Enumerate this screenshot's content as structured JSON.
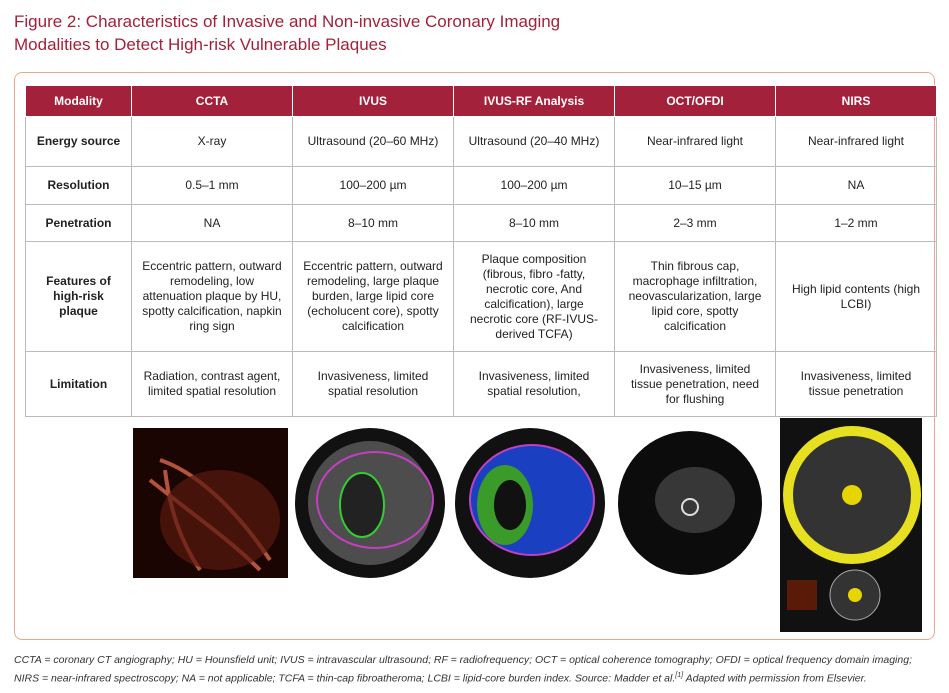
{
  "header": {
    "title": [
      "Figure 2: Characteristics of Invasive and Non-invasive Coronary Imaging",
      "Modalities to Detect High-risk Vulnerable Plaques"
    ]
  },
  "table": {
    "columns": [
      "Modality",
      "CCTA",
      "IVUS",
      "IVUS-RF Analysis",
      "OCT/OFDI",
      "NIRS"
    ],
    "rows": [
      [
        "Energy source",
        "X-ray",
        "Ultrasound (20–60 MHz)",
        "Ultrasound (20–40 MHz)",
        "Near-infrared light",
        "Near-infrared light"
      ],
      [
        "Resolution",
        "0.5–1 mm",
        "100–200 µm",
        "100–200 µm",
        "10–15 µm",
        "NA"
      ],
      [
        "Penetration",
        "NA",
        "8–10 mm",
        "8–10 mm",
        "2–3 mm",
        "1–2 mm"
      ],
      [
        "Features of high-risk plaque",
        "Eccentric pattern, outward remodeling, low attenuation plaque by HU, spotty calcification, napkin ring sign",
        "Eccentric pattern, outward remodeling, large plaque burden, large lipid core (echolucent core), spotty calcification",
        "Plaque composition (fibrous, fibro -fatty, necrotic core, And calcification), large necrotic core (RF-IVUS-derived TCFA)",
        "Thin fibrous cap, macrophage infiltration, neovascularization, large lipid core, spotty calcification",
        "High lipid contents (high LCBI)"
      ],
      [
        "Limitation",
        "Radiation, contrast agent, limited spatial resolution",
        "Invasiveness, limited spatial resolution",
        "Invasiveness, limited spatial resolution,",
        "Invasiveness, limited tissue penetration, need for flushing",
        "Invasiveness, limited tissue penetration"
      ]
    ]
  },
  "footnote": {
    "text": "CCTA = coronary CT angiography; HU = Hounsfield unit; IVUS = intravascular ultrasound; RF = radiofrequency; OCT = optical coherence tomography; OFDI = optical frequency domain imaging; NIRS = near-infrared spectroscopy; NA = not applicable; TCFA = thin-cap fibroatheroma; LCBI = lipid-core burden index. Source: Madder et al.",
    "ref": "[1]",
    "tail": " Adapted with permission from Elsevier."
  }
}
